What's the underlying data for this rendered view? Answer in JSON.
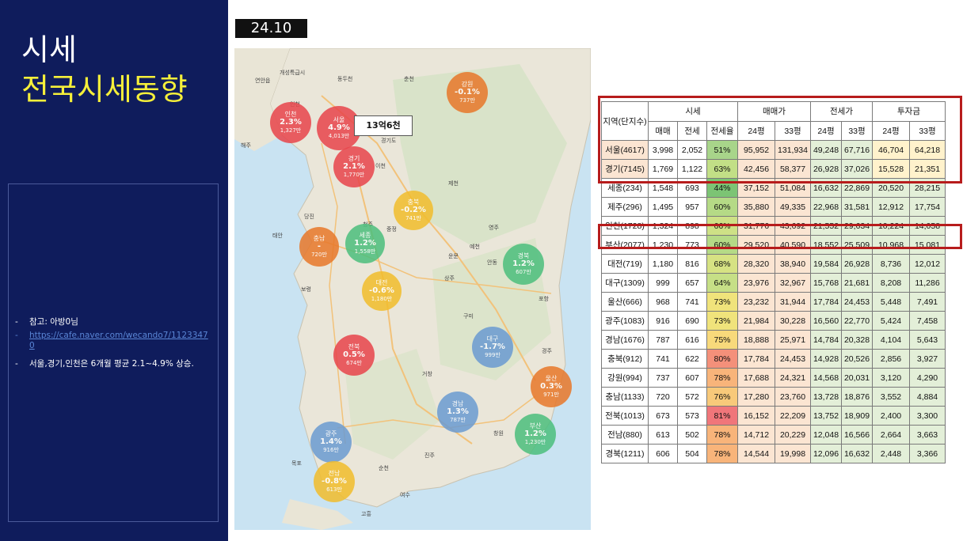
{
  "slide": {
    "title": "시세",
    "subtitle": "전국시세동향",
    "date": "24.10"
  },
  "notes": [
    {
      "text": "참고: 아방0님"
    },
    {
      "link": "https://cafe.naver.com/wecando7/11233470"
    },
    {
      "text": "서울,경기,인천은 6개월 평균 2.1~4.9% 상승."
    }
  ],
  "map": {
    "callout": "13억6천",
    "bubbles": [
      {
        "name": "인천",
        "change": "2.3%",
        "price": "1,327만",
        "color": "#e8454b"
      },
      {
        "name": "서울",
        "change": "4.9%",
        "price": "4,013만",
        "color": "#e8454b"
      },
      {
        "name": "경기",
        "change": "2.1%",
        "price": "1,770만",
        "color": "#e8454b"
      },
      {
        "name": "강원",
        "change": "-0.1%",
        "price": "737만",
        "color": "#e8782a"
      },
      {
        "name": "충북",
        "change": "-0.2%",
        "price": "741만",
        "color": "#f2bd2c"
      },
      {
        "name": "충남",
        "change": "-",
        "price": "720만",
        "color": "#e8782a"
      },
      {
        "name": "세종",
        "change": "1.2%",
        "price": "1,558만",
        "color": "#4cbf7d"
      },
      {
        "name": "대전",
        "change": "-0.6%",
        "price": "1,180만",
        "color": "#f2bd2c"
      },
      {
        "name": "경북",
        "change": "1.2%",
        "price": "607만",
        "color": "#4cbf7d"
      },
      {
        "name": "전북",
        "change": "0.5%",
        "price": "674만",
        "color": "#e8454b"
      },
      {
        "name": "대구",
        "change": "-1.7%",
        "price": "999만",
        "color": "#6b9bd1"
      },
      {
        "name": "울산",
        "change": "0.3%",
        "price": "971만",
        "color": "#e8782a"
      },
      {
        "name": "경남",
        "change": "1.3%",
        "price": "787만",
        "color": "#6b9bd1"
      },
      {
        "name": "부산",
        "change": "1.2%",
        "price": "1,230만",
        "color": "#4cbf7d"
      },
      {
        "name": "광주",
        "change": "1.4%",
        "price": "916만",
        "color": "#6b9bd1"
      },
      {
        "name": "전남",
        "change": "-0.8%",
        "price": "613만",
        "color": "#f2bd2c"
      }
    ],
    "labels": [
      "개성특급시",
      "동두천",
      "춘천",
      "연안읍",
      "경기도",
      "해주",
      "인천",
      "이천",
      "제천",
      "당진",
      "청주",
      "영주",
      "중정",
      "예천",
      "태안",
      "보령",
      "운문",
      "안동",
      "상주",
      "구미",
      "포항",
      "경주",
      "거창",
      "창원",
      "목포",
      "여수",
      "순천",
      "진주",
      "고흥"
    ]
  },
  "table": {
    "header_top": {
      "region": "지역(단지수)",
      "sise": "시세",
      "sale": "매매가",
      "jeonse": "전세가",
      "invest": "투자금"
    },
    "header_sub": [
      "매매",
      "전세",
      "전세율",
      "24평",
      "33평",
      "24평",
      "33평",
      "24평",
      "33평"
    ],
    "rows": [
      {
        "region": "서울(4617)",
        "sale": "3,998",
        "jeonse": "2,052",
        "rate": "51%",
        "rate_color": "#a8d58a",
        "s24": "95,952",
        "s33": "131,934",
        "j24": "49,248",
        "j33": "67,716",
        "i24": "46,704",
        "i33": "64,218"
      },
      {
        "region": "경기(7145)",
        "sale": "1,769",
        "jeonse": "1,122",
        "rate": "63%",
        "rate_color": "#c2df86",
        "s24": "42,456",
        "s33": "58,377",
        "j24": "26,928",
        "j33": "37,026",
        "i24": "15,528",
        "i33": "21,351"
      },
      {
        "region": "세종(234)",
        "sale": "1,548",
        "jeonse": "693",
        "rate": "44%",
        "rate_color": "#7cc474",
        "s24": "37,152",
        "s33": "51,084",
        "j24": "16,632",
        "j33": "22,869",
        "i24": "20,520",
        "i33": "28,215"
      },
      {
        "region": "제주(296)",
        "sale": "1,495",
        "jeonse": "957",
        "rate": "60%",
        "rate_color": "#b5da86",
        "s24": "35,880",
        "s33": "49,335",
        "j24": "22,968",
        "j33": "31,581",
        "i24": "12,912",
        "i33": "17,754"
      },
      {
        "region": "인천(1728)",
        "sale": "1,324",
        "jeonse": "898",
        "rate": "66%",
        "rate_color": "#cee186",
        "s24": "31,776",
        "s33": "43,692",
        "j24": "21,552",
        "j33": "29,634",
        "i24": "10,224",
        "i33": "14,058"
      },
      {
        "region": "부산(2077)",
        "sale": "1,230",
        "jeonse": "773",
        "rate": "60%",
        "rate_color": "#b5da86",
        "s24": "29,520",
        "s33": "40,590",
        "j24": "18,552",
        "j33": "25,509",
        "i24": "10,968",
        "i33": "15,081"
      },
      {
        "region": "대전(719)",
        "sale": "1,180",
        "jeonse": "816",
        "rate": "68%",
        "rate_color": "#d6e283",
        "s24": "28,320",
        "s33": "38,940",
        "j24": "19,584",
        "j33": "26,928",
        "i24": "8,736",
        "i33": "12,012"
      },
      {
        "region": "대구(1309)",
        "sale": "999",
        "jeonse": "657",
        "rate": "64%",
        "rate_color": "#c6df86",
        "s24": "23,976",
        "s33": "32,967",
        "j24": "15,768",
        "j33": "21,681",
        "i24": "8,208",
        "i33": "11,286"
      },
      {
        "region": "울산(666)",
        "sale": "968",
        "jeonse": "741",
        "rate": "73%",
        "rate_color": "#f0e37b",
        "s24": "23,232",
        "s33": "31,944",
        "j24": "17,784",
        "j33": "24,453",
        "i24": "5,448",
        "i33": "7,491"
      },
      {
        "region": "광주(1083)",
        "sale": "916",
        "jeonse": "690",
        "rate": "73%",
        "rate_color": "#f0e37b",
        "s24": "21,984",
        "s33": "30,228",
        "j24": "16,560",
        "j33": "22,770",
        "i24": "5,424",
        "i33": "7,458"
      },
      {
        "region": "경남(1676)",
        "sale": "787",
        "jeonse": "616",
        "rate": "75%",
        "rate_color": "#f8d97b",
        "s24": "18,888",
        "s33": "25,971",
        "j24": "14,784",
        "j33": "20,328",
        "i24": "4,104",
        "i33": "5,643"
      },
      {
        "region": "충북(912)",
        "sale": "741",
        "jeonse": "622",
        "rate": "80%",
        "rate_color": "#f4907a",
        "s24": "17,784",
        "s33": "24,453",
        "j24": "14,928",
        "j33": "20,526",
        "i24": "2,856",
        "i33": "3,927"
      },
      {
        "region": "강원(994)",
        "sale": "737",
        "jeonse": "607",
        "rate": "78%",
        "rate_color": "#f8b47a",
        "s24": "17,688",
        "s33": "24,321",
        "j24": "14,568",
        "j33": "20,031",
        "i24": "3,120",
        "i33": "4,290"
      },
      {
        "region": "충남(1133)",
        "sale": "720",
        "jeonse": "572",
        "rate": "76%",
        "rate_color": "#f8c97a",
        "s24": "17,280",
        "s33": "23,760",
        "j24": "13,728",
        "j33": "18,876",
        "i24": "3,552",
        "i33": "4,884"
      },
      {
        "region": "전북(1013)",
        "sale": "673",
        "jeonse": "573",
        "rate": "81%",
        "rate_color": "#f0767a",
        "s24": "16,152",
        "s33": "22,209",
        "j24": "13,752",
        "j33": "18,909",
        "i24": "2,400",
        "i33": "3,300"
      },
      {
        "region": "전남(880)",
        "sale": "613",
        "jeonse": "502",
        "rate": "78%",
        "rate_color": "#f8b47a",
        "s24": "14,712",
        "s33": "20,229",
        "j24": "12,048",
        "j33": "16,566",
        "i24": "2,664",
        "i33": "3,663"
      },
      {
        "region": "경북(1211)",
        "sale": "606",
        "jeonse": "504",
        "rate": "78%",
        "rate_color": "#f8b47a",
        "s24": "14,544",
        "s33": "19,998",
        "j24": "12,096",
        "j33": "16,632",
        "i24": "2,448",
        "i33": "3,366"
      }
    ]
  }
}
